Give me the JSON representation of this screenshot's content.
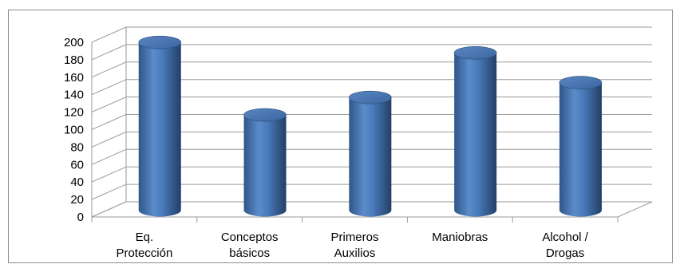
{
  "chart_data": {
    "type": "bar",
    "style": "3d-cylinder",
    "categories": [
      [
        "Eq.",
        "Protección"
      ],
      [
        "Conceptos",
        "básicos"
      ],
      [
        "Primeros",
        "Auxilios"
      ],
      [
        "Maniobras"
      ],
      [
        "Alcohol /",
        "Drogas"
      ]
    ],
    "values": [
      192,
      109,
      129,
      180,
      146
    ],
    "title": "",
    "xlabel": "",
    "ylabel": "",
    "ylim": [
      0,
      200
    ],
    "yticks": [
      0,
      20,
      40,
      60,
      80,
      100,
      120,
      140,
      160,
      180,
      200
    ],
    "grid": true,
    "legend": "none",
    "colors": {
      "bar_light": "#8fb4e3",
      "bar_mid": "#4f81bd",
      "bar_dark": "#2c4d75",
      "grid": "#9a9a9a"
    }
  }
}
